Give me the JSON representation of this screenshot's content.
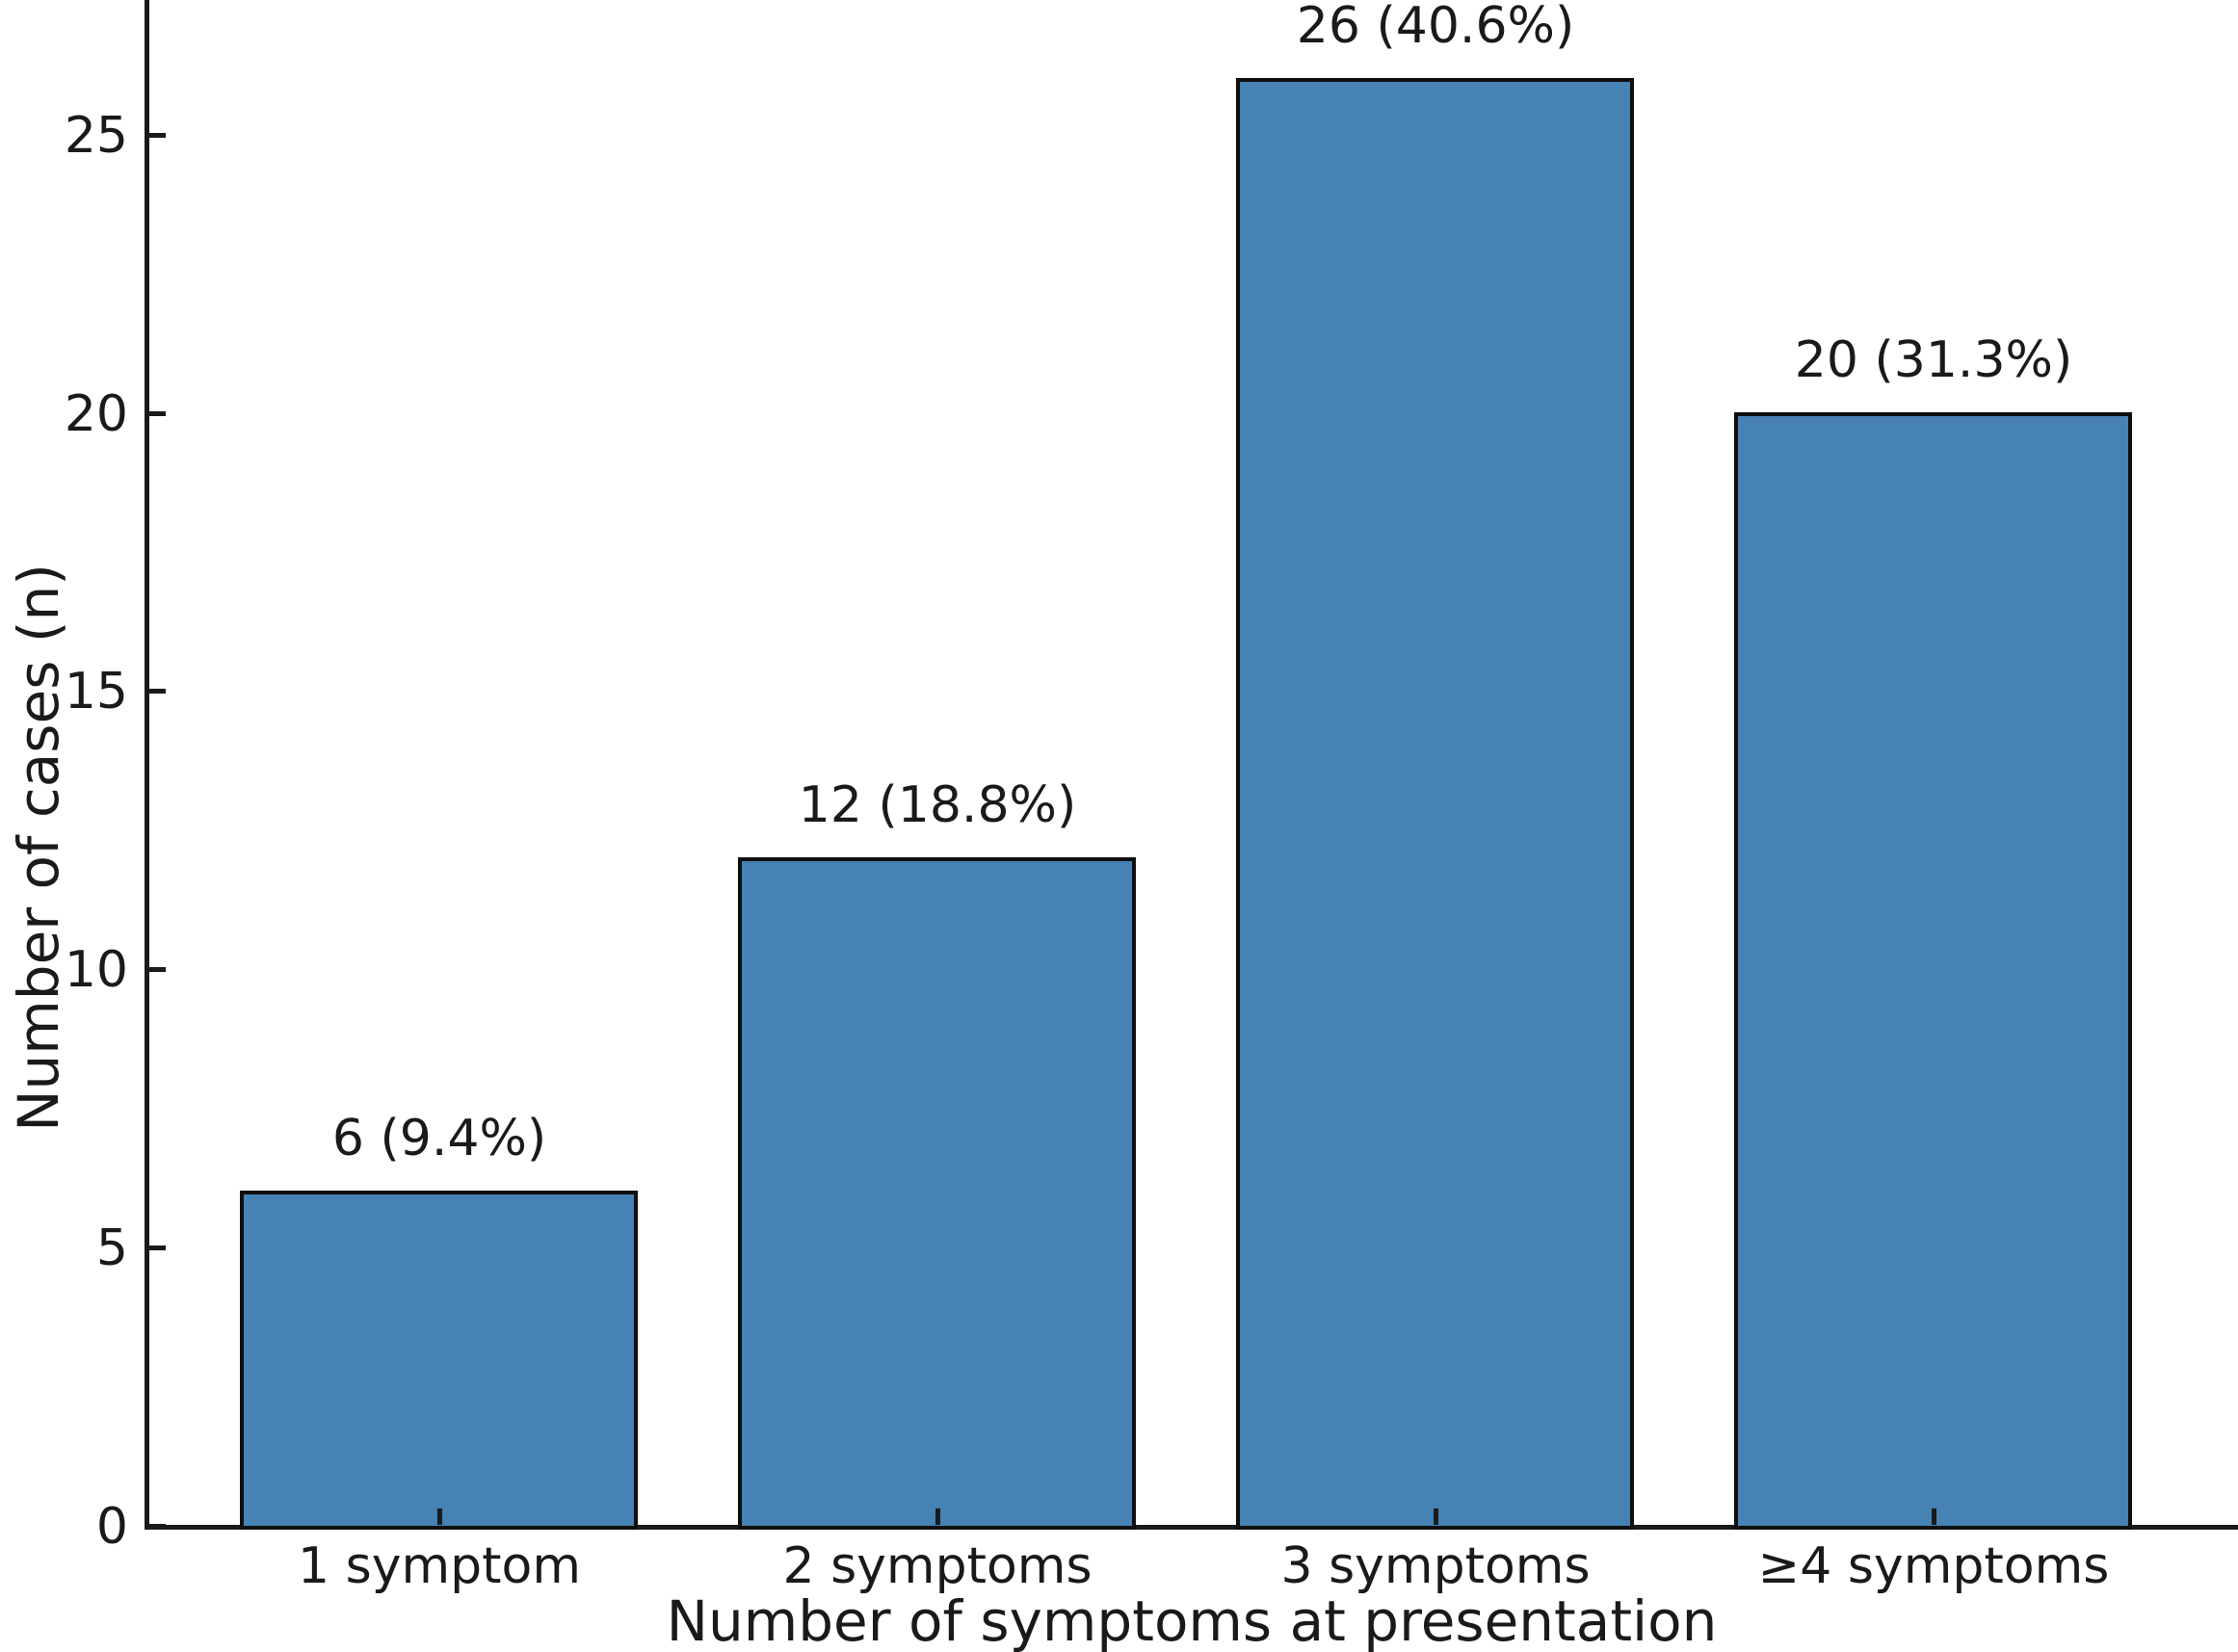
{
  "chart_data": {
    "type": "bar",
    "title": "",
    "categories": [
      "1 symptom",
      "2 symptoms",
      "3 symptoms",
      "≥4 symptoms"
    ],
    "values": [
      6,
      12,
      26,
      20
    ],
    "bar_labels": [
      "6 (9.4%)",
      "12 (18.8%)",
      "26 (40.6%)",
      "20 (31.3%)"
    ],
    "xlabel": "Number of symptoms at presentation",
    "ylabel": "Number of cases (n)",
    "yticks": [
      0,
      5,
      10,
      15,
      20,
      25
    ],
    "ylim": [
      0,
      27.4
    ],
    "grid": false,
    "legend": "none",
    "colors": {
      "bar_fill": "#4682B4",
      "bar_edge": "#0f0f0f",
      "axis": "#1a1a1a",
      "text": "#1a1a1a",
      "background": "#ffffff"
    }
  }
}
